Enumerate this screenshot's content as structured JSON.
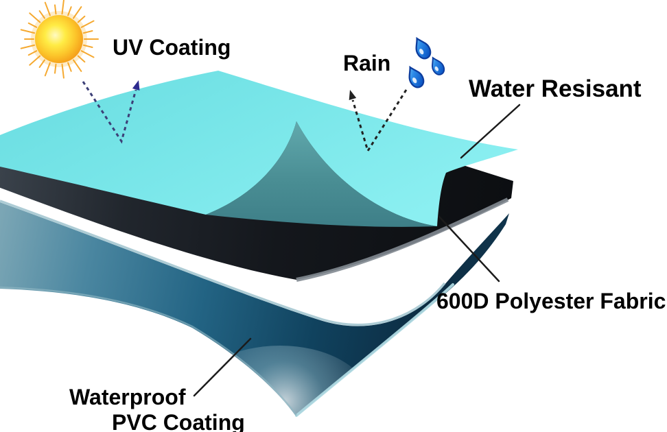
{
  "labels": {
    "uv_coating": "UV Coating",
    "rain": "Rain",
    "water_resistant": "Water Resisant",
    "polyester_fabric": "600D Polyester Fabric",
    "waterproof_line1": "Waterproof",
    "waterproof_line2": "PVC Coating"
  },
  "layers": [
    {
      "name": "UV coated top layer",
      "color": "#74E3E6",
      "underside_color": "#4A8E94"
    },
    {
      "name": "600D polyester fabric middle layer",
      "color": "#16191D",
      "edge_color": "#828A91"
    },
    {
      "name": "Waterproof PVC coating bottom layer",
      "color": "#1D5A77"
    }
  ],
  "colors": {
    "background": "#ffffff",
    "label_text": "#000000",
    "top_layer": "#74E3E6",
    "top_layer_underside": "#4A8E94",
    "middle_layer": "#16191D",
    "middle_layer_edge": "#828A91",
    "bottom_layer": "#1D5A77",
    "sun_core": "#FFE93E",
    "sun_edge": "#F5A01A",
    "raindrop_fill": "#1F7FE0",
    "raindrop_outline": "#0D3D9E",
    "uv_arrow": "#3C3F77",
    "uv_arrow_head": "#2D2B8F",
    "rain_arrow": "#222222",
    "pointer_line": "#1B1B1B"
  },
  "icons": {
    "sun": "sun-icon",
    "raindrops": "rain-drops-icon",
    "uv_reflect": "uv-reflect-arrow-icon",
    "rain_reflect": "rain-reflect-arrow-icon"
  }
}
